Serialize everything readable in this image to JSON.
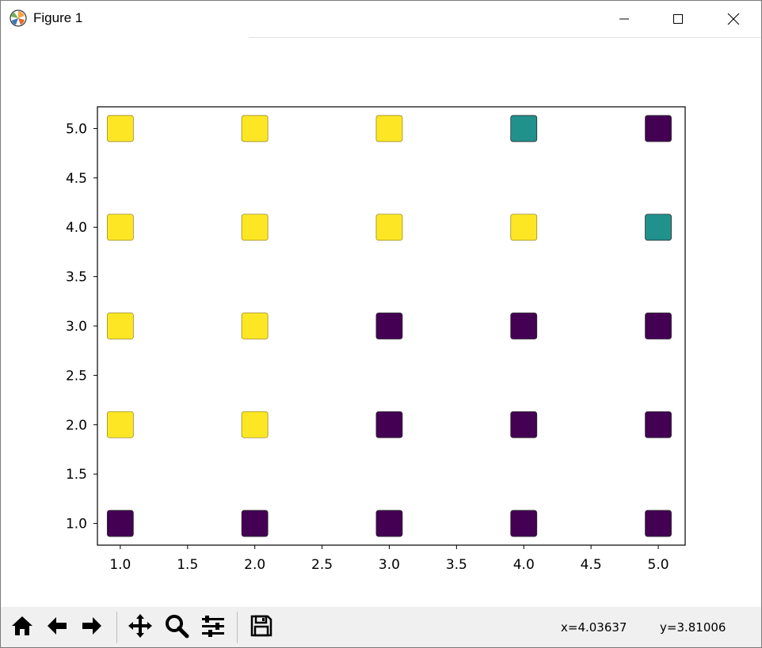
{
  "window": {
    "title": "Figure 1",
    "app_icon": "matplotlib-logo-icon",
    "controls": [
      "minimize-icon",
      "maximize-icon",
      "close-icon"
    ]
  },
  "toolbar": {
    "buttons": [
      "home-icon",
      "back-arrow-icon",
      "forward-arrow-icon",
      "pan-move-icon",
      "zoom-magnifier-icon",
      "configure-subplots-icon",
      "save-floppy-icon"
    ],
    "coord_x": "x=4.03637",
    "coord_y": "y=3.81006"
  },
  "chart_data": {
    "type": "scatter",
    "marker": "square",
    "xlim": [
      0.83,
      5.2
    ],
    "ylim": [
      0.78,
      5.22
    ],
    "xticks": [
      1.0,
      1.5,
      2.0,
      2.5,
      3.0,
      3.5,
      4.0,
      4.5,
      5.0
    ],
    "yticks": [
      1.0,
      1.5,
      2.0,
      2.5,
      3.0,
      3.5,
      4.0,
      4.5,
      5.0
    ],
    "xtick_labels": [
      "1.0",
      "1.5",
      "2.0",
      "2.5",
      "3.0",
      "3.5",
      "4.0",
      "4.5",
      "5.0"
    ],
    "ytick_labels": [
      "1.0",
      "1.5",
      "2.0",
      "2.5",
      "3.0",
      "3.5",
      "4.0",
      "4.5",
      "5.0"
    ],
    "grid": false,
    "colors": {
      "yellow": "#fde725",
      "teal": "#21918c",
      "purple": "#440154"
    },
    "points": [
      {
        "x": 1,
        "y": 5,
        "c": "yellow"
      },
      {
        "x": 2,
        "y": 5,
        "c": "yellow"
      },
      {
        "x": 3,
        "y": 5,
        "c": "yellow"
      },
      {
        "x": 4,
        "y": 5,
        "c": "teal"
      },
      {
        "x": 5,
        "y": 5,
        "c": "purple"
      },
      {
        "x": 1,
        "y": 4,
        "c": "yellow"
      },
      {
        "x": 2,
        "y": 4,
        "c": "yellow"
      },
      {
        "x": 3,
        "y": 4,
        "c": "yellow"
      },
      {
        "x": 4,
        "y": 4,
        "c": "yellow"
      },
      {
        "x": 5,
        "y": 4,
        "c": "teal"
      },
      {
        "x": 1,
        "y": 3,
        "c": "yellow"
      },
      {
        "x": 2,
        "y": 3,
        "c": "yellow"
      },
      {
        "x": 3,
        "y": 3,
        "c": "purple"
      },
      {
        "x": 4,
        "y": 3,
        "c": "purple"
      },
      {
        "x": 5,
        "y": 3,
        "c": "purple"
      },
      {
        "x": 1,
        "y": 2,
        "c": "yellow"
      },
      {
        "x": 2,
        "y": 2,
        "c": "yellow"
      },
      {
        "x": 3,
        "y": 2,
        "c": "purple"
      },
      {
        "x": 4,
        "y": 2,
        "c": "purple"
      },
      {
        "x": 5,
        "y": 2,
        "c": "purple"
      },
      {
        "x": 1,
        "y": 1,
        "c": "purple"
      },
      {
        "x": 2,
        "y": 1,
        "c": "purple"
      },
      {
        "x": 3,
        "y": 1,
        "c": "purple"
      },
      {
        "x": 4,
        "y": 1,
        "c": "purple"
      },
      {
        "x": 5,
        "y": 1,
        "c": "purple"
      }
    ]
  }
}
